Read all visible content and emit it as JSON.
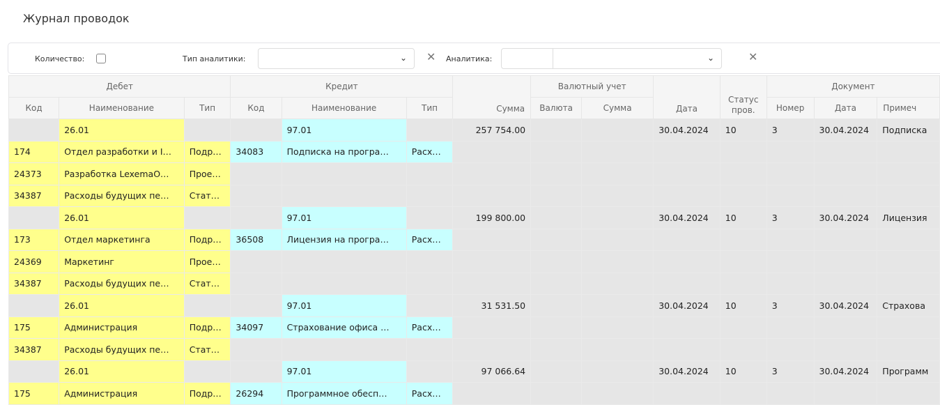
{
  "title": "Журнал проводок",
  "filters": {
    "quantity_label": "Количество:",
    "analytics_type_label": "Тип аналитики:",
    "analytics_label": "Аналитика:"
  },
  "headers": {
    "debit": "Дебет",
    "credit": "Кредит",
    "currency": "Валютный учет",
    "document": "Документ",
    "sum": "Сумма",
    "date": "Дата",
    "status": "Статус пров.",
    "code": "Код",
    "name": "Наименование",
    "type": "Тип",
    "cur": "Валюта",
    "cur_sum": "Сумма",
    "number": "Номер",
    "doc_date": "Дата",
    "note": "Примеч"
  },
  "colors": {
    "debit": "#ffff8c",
    "credit": "#c8ffff",
    "row": "#e6e6e6"
  },
  "rows": [
    {
      "kind": "summary",
      "d_name": "26.01",
      "c_name": "97.01",
      "sum": "257 754.00",
      "date": "30.04.2024",
      "status": "10",
      "num": "3",
      "doc_date": "30.04.2024",
      "note": "Подписка"
    },
    {
      "kind": "detail",
      "d_code": "174",
      "d_name": "Отдел разработки и I…",
      "d_type": "Подр…",
      "c_code": "34083",
      "c_name": "Подписка на програ…",
      "c_type": "Расх…"
    },
    {
      "kind": "detail",
      "d_code": "24373",
      "d_name": "Разработка LexemaO…",
      "d_type": "Прое…"
    },
    {
      "kind": "detail",
      "d_code": "34387",
      "d_name": "Расходы будущих пе…",
      "d_type": "Стат…"
    },
    {
      "kind": "summary",
      "d_name": "26.01",
      "c_name": "97.01",
      "sum": "199 800.00",
      "date": "30.04.2024",
      "status": "10",
      "num": "3",
      "doc_date": "30.04.2024",
      "note": "Лицензия"
    },
    {
      "kind": "detail",
      "d_code": "173",
      "d_name": "Отдел маркетинга",
      "d_type": "Подр…",
      "c_code": "36508",
      "c_name": "Лицензия на програ…",
      "c_type": "Расх…"
    },
    {
      "kind": "detail",
      "d_code": "24369",
      "d_name": "Маркетинг",
      "d_type": "Прое…"
    },
    {
      "kind": "detail",
      "d_code": "34387",
      "d_name": "Расходы будущих пе…",
      "d_type": "Стат…"
    },
    {
      "kind": "summary",
      "d_name": "26.01",
      "c_name": "97.01",
      "sum": "31 531.50",
      "date": "30.04.2024",
      "status": "10",
      "num": "3",
      "doc_date": "30.04.2024",
      "note": "Страхова"
    },
    {
      "kind": "detail",
      "d_code": "175",
      "d_name": "Администрация",
      "d_type": "Подр…",
      "c_code": "34097",
      "c_name": "Страхование офиса …",
      "c_type": "Расх…"
    },
    {
      "kind": "detail",
      "d_code": "34387",
      "d_name": "Расходы будущих пе…",
      "d_type": "Стат…"
    },
    {
      "kind": "summary",
      "d_name": "26.01",
      "c_name": "97.01",
      "sum": "97 066.64",
      "date": "30.04.2024",
      "status": "10",
      "num": "3",
      "doc_date": "30.04.2024",
      "note": "Программ"
    },
    {
      "kind": "detail",
      "d_code": "175",
      "d_name": "Администрация",
      "d_type": "Подр…",
      "c_code": "26294",
      "c_name": "Программное обесп…",
      "c_type": "Расх…"
    }
  ]
}
